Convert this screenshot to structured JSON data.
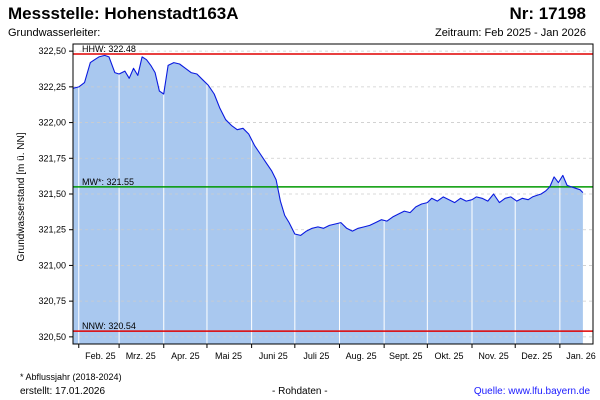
{
  "header": {
    "title": "Messstelle: Hohenstadt163A",
    "station_nr": "Nr: 17198",
    "aquifer": "Grundwasserleiter:",
    "period": "Zeitraum: Feb 2025 - Jan 2026"
  },
  "footer": {
    "footnote": "* Abflussjahr (2018-2024)",
    "created": "erstellt:  17.01.2026",
    "rawdata": "- Rohdaten -",
    "source": "Quelle:  www.lfu.bayern.de"
  },
  "colors": {
    "area_fill": "#a9c8ef",
    "line": "#0a1adf",
    "hhw": "#e00000",
    "mw": "#009900",
    "nnw": "#e00000",
    "grid_vertical": "#ffffff",
    "grid_horizontal": "#cccccc"
  },
  "chart_data": {
    "type": "area",
    "ylabel": "Grundwasserstand [m ü. NN]",
    "xlabel": "",
    "ylim": [
      320.45,
      322.55
    ],
    "yticks": [
      320.5,
      320.75,
      321.0,
      321.25,
      321.5,
      321.75,
      322.0,
      322.25,
      322.5
    ],
    "ytick_labels": [
      "320,50",
      "320,75",
      "321,00",
      "321,25",
      "321,50",
      "321,75",
      "322,00",
      "322,25",
      "322,50"
    ],
    "xlim": [
      "2025-01-28",
      "2026-01-24"
    ],
    "xticks": [
      "2025-02-01",
      "2025-03-01",
      "2025-04-01",
      "2025-05-01",
      "2025-06-01",
      "2025-07-01",
      "2025-08-01",
      "2025-09-01",
      "2025-10-01",
      "2025-11-01",
      "2025-12-01",
      "2026-01-01"
    ],
    "xtick_labels": [
      "Feb. 25",
      "Mrz. 25",
      "Apr. 25",
      "Mai 25",
      "Juni 25",
      "Juli 25",
      "Aug. 25",
      "Sept. 25",
      "Okt. 25",
      "Nov. 25",
      "Dez. 25",
      "Jan. 26"
    ],
    "grid": true,
    "reference_lines": [
      {
        "label": "HHW: 322.48",
        "value": 322.48,
        "color_key": "hhw"
      },
      {
        "label": "MW*: 321.55",
        "value": 321.55,
        "color_key": "mw"
      },
      {
        "label": "NNW: 320.54",
        "value": 320.54,
        "color_key": "nnw"
      }
    ],
    "series": [
      {
        "x": [
          "2025-01-28",
          "2025-02-01",
          "2025-02-05",
          "2025-02-09",
          "2025-02-12",
          "2025-02-15",
          "2025-02-19",
          "2025-02-22",
          "2025-02-26",
          "2025-03-01",
          "2025-03-05",
          "2025-03-08",
          "2025-03-11",
          "2025-03-14",
          "2025-03-17",
          "2025-03-20",
          "2025-03-23",
          "2025-03-26",
          "2025-03-29",
          "2025-04-01",
          "2025-04-04",
          "2025-04-08",
          "2025-04-12",
          "2025-04-16",
          "2025-04-20",
          "2025-04-24",
          "2025-04-28",
          "2025-05-02",
          "2025-05-06",
          "2025-05-10",
          "2025-05-14",
          "2025-05-18",
          "2025-05-22",
          "2025-05-26",
          "2025-05-30",
          "2025-06-03",
          "2025-06-07",
          "2025-06-11",
          "2025-06-15",
          "2025-06-18",
          "2025-06-21",
          "2025-06-24",
          "2025-06-27",
          "2025-07-01",
          "2025-07-05",
          "2025-07-09",
          "2025-07-13",
          "2025-07-17",
          "2025-07-21",
          "2025-07-25",
          "2025-07-29",
          "2025-08-02",
          "2025-08-06",
          "2025-08-10",
          "2025-08-14",
          "2025-08-18",
          "2025-08-22",
          "2025-08-26",
          "2025-08-30",
          "2025-09-03",
          "2025-09-07",
          "2025-09-11",
          "2025-09-15",
          "2025-09-19",
          "2025-09-23",
          "2025-09-27",
          "2025-10-01",
          "2025-10-04",
          "2025-10-08",
          "2025-10-12",
          "2025-10-16",
          "2025-10-20",
          "2025-10-24",
          "2025-10-28",
          "2025-11-01",
          "2025-11-04",
          "2025-11-08",
          "2025-11-12",
          "2025-11-16",
          "2025-11-20",
          "2025-11-24",
          "2025-11-28",
          "2025-12-02",
          "2025-12-06",
          "2025-12-10",
          "2025-12-13",
          "2025-12-16",
          "2025-12-19",
          "2025-12-22",
          "2025-12-25",
          "2025-12-28",
          "2025-12-31",
          "2026-01-03",
          "2026-01-06",
          "2026-01-09",
          "2026-01-12",
          "2026-01-15",
          "2026-01-17"
        ],
        "y": [
          322.24,
          322.25,
          322.28,
          322.42,
          322.44,
          322.46,
          322.47,
          322.46,
          322.35,
          322.34,
          322.36,
          322.31,
          322.38,
          322.33,
          322.46,
          322.44,
          322.4,
          322.35,
          322.22,
          322.2,
          322.4,
          322.42,
          322.41,
          322.38,
          322.35,
          322.34,
          322.3,
          322.26,
          322.2,
          322.1,
          322.02,
          321.98,
          321.95,
          321.96,
          321.92,
          321.84,
          321.78,
          321.72,
          321.66,
          321.6,
          321.45,
          321.35,
          321.3,
          321.22,
          321.21,
          321.24,
          321.26,
          321.27,
          321.26,
          321.28,
          321.29,
          321.3,
          321.26,
          321.24,
          321.26,
          321.27,
          321.28,
          321.3,
          321.32,
          321.31,
          321.34,
          321.36,
          321.38,
          321.37,
          321.41,
          321.43,
          321.44,
          321.47,
          321.45,
          321.48,
          321.46,
          321.44,
          321.47,
          321.45,
          321.46,
          321.48,
          321.47,
          321.45,
          321.5,
          321.44,
          321.47,
          321.48,
          321.45,
          321.47,
          321.46,
          321.48,
          321.49,
          321.5,
          321.52,
          321.55,
          321.62,
          321.58,
          321.63,
          321.56,
          321.55,
          321.54,
          321.53,
          321.51
        ]
      }
    ]
  }
}
